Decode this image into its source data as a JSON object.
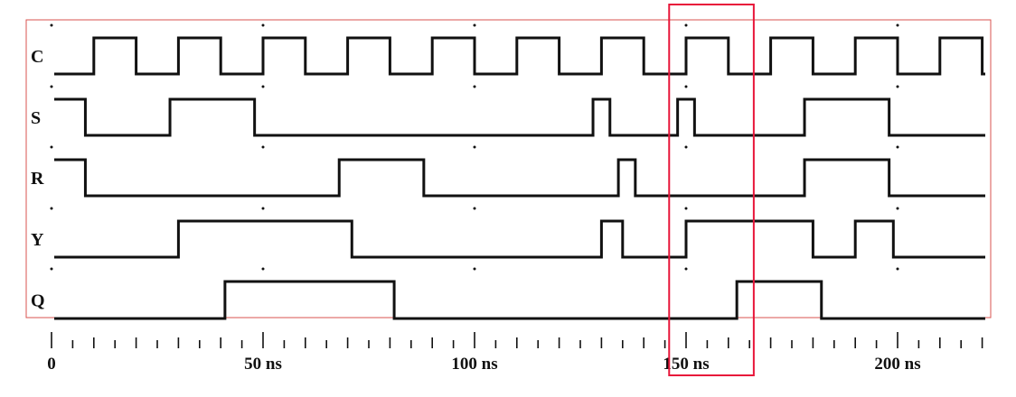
{
  "time_axis": {
    "unit": "ns",
    "min": 0,
    "max": 220,
    "minor_step": 5,
    "major_ticks": [
      0,
      50,
      100,
      150,
      200
    ],
    "labels": [
      "0",
      "50 ns",
      "100 ns",
      "150 ns",
      "200 ns"
    ]
  },
  "signals": [
    {
      "name": "C",
      "initial": 0,
      "transitions": [
        [
          10,
          1
        ],
        [
          20,
          0
        ],
        [
          30,
          1
        ],
        [
          40,
          0
        ],
        [
          50,
          1
        ],
        [
          60,
          0
        ],
        [
          70,
          1
        ],
        [
          80,
          0
        ],
        [
          90,
          1
        ],
        [
          100,
          0
        ],
        [
          110,
          1
        ],
        [
          120,
          0
        ],
        [
          130,
          1
        ],
        [
          140,
          0
        ],
        [
          150,
          1
        ],
        [
          160,
          0
        ],
        [
          170,
          1
        ],
        [
          180,
          0
        ],
        [
          190,
          1
        ],
        [
          200,
          0
        ],
        [
          210,
          1
        ],
        [
          220,
          0
        ]
      ]
    },
    {
      "name": "S",
      "initial": 1,
      "transitions": [
        [
          8,
          0
        ],
        [
          28,
          1
        ],
        [
          48,
          0
        ],
        [
          128,
          1
        ],
        [
          132,
          0
        ],
        [
          148,
          1
        ],
        [
          152,
          0
        ],
        [
          178,
          1
        ],
        [
          198,
          0
        ]
      ]
    },
    {
      "name": "R",
      "initial": 1,
      "transitions": [
        [
          8,
          0
        ],
        [
          68,
          1
        ],
        [
          88,
          0
        ],
        [
          134,
          1
        ],
        [
          138,
          0
        ],
        [
          178,
          1
        ],
        [
          198,
          0
        ]
      ]
    },
    {
      "name": "Y",
      "initial": 0,
      "transitions": [
        [
          30,
          1
        ],
        [
          71,
          0
        ],
        [
          130,
          1
        ],
        [
          135,
          0
        ],
        [
          150,
          1
        ],
        [
          180,
          0
        ],
        [
          190,
          1
        ],
        [
          199,
          0
        ]
      ]
    },
    {
      "name": "Q",
      "initial": 0,
      "transitions": [
        [
          41,
          1
        ],
        [
          81,
          0
        ],
        [
          162,
          1
        ],
        [
          182,
          0
        ]
      ]
    }
  ],
  "highlight": {
    "from": 146,
    "to": 166
  },
  "colors": {
    "wave": "#111111",
    "frame": "#d9534f",
    "highlight": "#e8163a"
  }
}
